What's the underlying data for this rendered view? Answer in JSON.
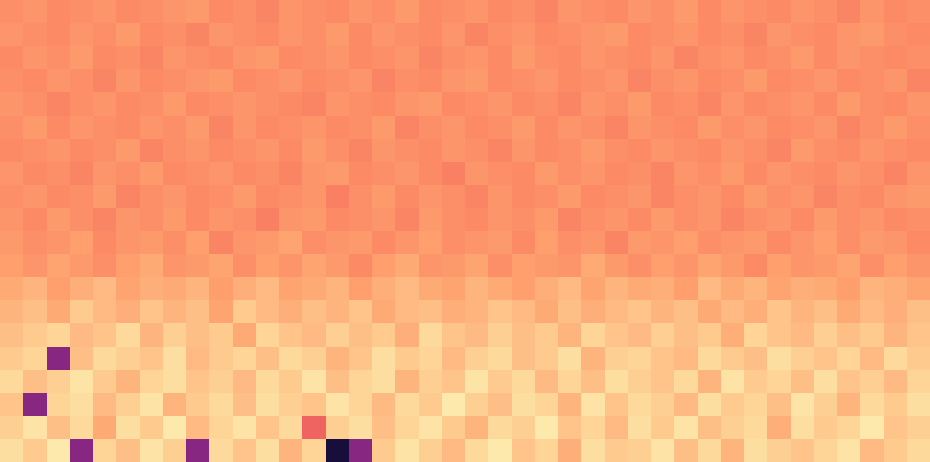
{
  "chart_data": {
    "type": "heatmap",
    "tick_labels": false,
    "zlim": [
      -90,
      0
    ],
    "z": [
      [
        -6,
        -10,
        -4,
        -55,
        -8,
        -12,
        -5,
        -9,
        -55,
        -7,
        -11,
        -6,
        -14,
        -8,
        -80,
        -55,
        -10,
        -5,
        -9,
        -13,
        -7,
        -4,
        -11,
        -8,
        -15,
        -6,
        -10,
        -9,
        -5,
        -12,
        -7,
        -14,
        -6,
        -9,
        -11,
        -8,
        -5,
        -13,
        -10,
        -7
      ],
      [
        -9,
        -5,
        -12,
        -7,
        -16,
        -6,
        -10,
        -4,
        -13,
        -8,
        -5,
        -11,
        -7,
        -30,
        -9,
        -6,
        -12,
        -8,
        -5,
        -10,
        -14,
        -7,
        -9,
        -4,
        -11,
        -8,
        -13,
        -6,
        -10,
        -5,
        -12,
        -9,
        -7,
        -15,
        -6,
        -10,
        -8,
        -4,
        -11,
        -9
      ],
      [
        -11,
        -55,
        -8,
        -6,
        -13,
        -9,
        -5,
        -14,
        -10,
        -7,
        -12,
        -6,
        -9,
        -11,
        -5,
        -8,
        -13,
        -7,
        -10,
        -4,
        -9,
        -12,
        -6,
        -8,
        -14,
        -5,
        -11,
        -7,
        -9,
        -13,
        -6,
        -10,
        -8,
        -12,
        -5,
        -9,
        -14,
        -7,
        -10,
        -6
      ],
      [
        -7,
        -12,
        -9,
        -5,
        -10,
        -14,
        -8,
        -6,
        -11,
        -9,
        -13,
        -7,
        -10,
        -5,
        -12,
        -8,
        -6,
        -14,
        -9,
        -11,
        -5,
        -10,
        -7,
        -13,
        -8,
        -12,
        -6,
        -9,
        -11,
        -7,
        -14,
        -5,
        -10,
        -8,
        -12,
        -6,
        -11,
        -9,
        -13,
        -8
      ],
      [
        -10,
        -8,
        -55,
        -12,
        -7,
        -9,
        -11,
        -6,
        -13,
        -10,
        -8,
        -12,
        -7,
        -9,
        -14,
        -11,
        -6,
        -10,
        -8,
        -13,
        -9,
        -7,
        -12,
        -10,
        -6,
        -14,
        -9,
        -8,
        -11,
        -13,
        -7,
        -10,
        -12,
        -6,
        -9,
        -11,
        -8,
        -13,
        -7,
        -10
      ],
      [
        -12,
        -10,
        -8,
        -13,
        -11,
        -7,
        -14,
        -9,
        -12,
        -10,
        -16,
        -8,
        -11,
        -13,
        -9,
        -12,
        -10,
        -15,
        -7,
        -11,
        -13,
        -9,
        -12,
        -10,
        -14,
        -8,
        -11,
        -13,
        -9,
        -12,
        -10,
        -15,
        -8,
        -11,
        -13,
        -9,
        -12,
        -10,
        -14,
        -11
      ],
      [
        -14,
        -12,
        -16,
        -10,
        -13,
        -15,
        -11,
        -14,
        -12,
        -17,
        -10,
        -13,
        -15,
        -12,
        -14,
        -11,
        -16,
        -13,
        -12,
        -15,
        -14,
        -11,
        -13,
        -16,
        -12,
        -15,
        -13,
        -11,
        -14,
        -12,
        -16,
        -13,
        -15,
        -11,
        -14,
        -12,
        -16,
        -13,
        -15,
        -12
      ],
      [
        -16,
        -14,
        -18,
        -15,
        -13,
        -17,
        -15,
        -16,
        -14,
        -18,
        -15,
        -13,
        -17,
        -16,
        -14,
        -18,
        -15,
        -13,
        -16,
        -17,
        -14,
        -16,
        -18,
        -15,
        -13,
        -17,
        -14,
        -16,
        -15,
        -18,
        -13,
        -16,
        -14,
        -17,
        -15,
        -16,
        -18,
        -14,
        -15,
        -17
      ],
      [
        -18,
        -20,
        -17,
        -19,
        -21,
        -18,
        -16,
        -20,
        -19,
        -17,
        -21,
        -18,
        -20,
        -17,
        -19,
        -22,
        -18,
        -16,
        -20,
        -19,
        -17,
        -21,
        -18,
        -19,
        -20,
        -16,
        -19,
        -21,
        -18,
        -20,
        -17,
        -19,
        -22,
        -18,
        -20,
        -19,
        -17,
        -21,
        -18,
        -20
      ],
      [
        -19,
        -21,
        -20,
        -18,
        -22,
        -20,
        -19,
        -21,
        -18,
        -23,
        -20,
        -19,
        -17,
        -21,
        -20,
        -19,
        -22,
        -20,
        -18,
        -21,
        -20,
        -19,
        -22,
        -18,
        -21,
        -20,
        -23,
        -19,
        -20,
        -18,
        -21,
        -20,
        -19,
        -22,
        -20,
        -18,
        -21,
        -19,
        -20,
        -22
      ],
      [
        -20,
        -22,
        -19,
        -21,
        -23,
        -20,
        -21,
        -19,
        -22,
        -20,
        -21,
        -24,
        -20,
        -19,
        -22,
        -21,
        -20,
        -23,
        -19,
        -21,
        -22,
        -20,
        -21,
        -19,
        -23,
        -21,
        -20,
        -22,
        -19,
        -21,
        -20,
        -23,
        -21,
        -20,
        -22,
        -19,
        -21,
        -20,
        -22,
        -21
      ],
      [
        -21,
        -20,
        -22,
        -21,
        -19,
        -23,
        -21,
        -20,
        -22,
        -21,
        -19,
        -22,
        -21,
        -20,
        -24,
        -21,
        -19,
        -22,
        -20,
        -21,
        -23,
        -20,
        -22,
        -21,
        -19,
        -22,
        -21,
        -20,
        -23,
        -21,
        -20,
        -22,
        -19,
        -21,
        -20,
        -23,
        -21,
        -22,
        -20,
        -19
      ],
      [
        -20,
        -22,
        -21,
        -23,
        -20,
        -21,
        -19,
        -22,
        -21,
        -20,
        -22,
        -21,
        -23,
        -20,
        -19,
        -22,
        -21,
        -20,
        -22,
        -24,
        -20,
        -21,
        -22,
        -19,
        -21,
        -20,
        -22,
        -21,
        -23,
        -20,
        -21,
        -19,
        -22,
        -20,
        -21,
        -22,
        -20,
        -21,
        -23,
        -20
      ],
      [
        -22,
        -21,
        -20,
        -22,
        -21,
        -19,
        -23,
        -21,
        -20,
        -22,
        -21,
        -20,
        -22,
        -19,
        -21,
        -23,
        -20,
        -21,
        -22,
        -20,
        -21,
        -23,
        -20,
        -22,
        -21,
        -19,
        -21,
        -22,
        -20,
        -21,
        -22,
        -20,
        -21,
        -23,
        -19,
        -21,
        -22,
        -20,
        -21,
        -22
      ],
      [
        -21,
        -19,
        -22,
        -20,
        -21,
        -22,
        -20,
        -21,
        -19,
        -23,
        -20,
        -22,
        -21,
        -20,
        -22,
        -21,
        -19,
        -23,
        -21,
        -20,
        -22,
        -21,
        -19,
        -22,
        -20,
        -21,
        -23,
        -20,
        -21,
        -22,
        -19,
        -21,
        -20,
        -22,
        -21,
        -20,
        -23,
        -21,
        -19,
        -21
      ],
      [
        -20,
        -21,
        -23,
        -21,
        -20,
        -22,
        -21,
        -19,
        -22,
        -21,
        -20,
        -21,
        -22,
        -23,
        -20,
        -21,
        -22,
        -20,
        -19,
        -22,
        -21,
        -20,
        -22,
        -21,
        -23,
        -20,
        -21,
        -19,
        -22,
        -21,
        -23,
        -20,
        -22,
        -21,
        -20,
        -22,
        -19,
        -21,
        -22,
        -20
      ],
      [
        -21,
        -22,
        -20,
        -21,
        -23,
        -20,
        -22,
        -21,
        -20,
        -19,
        -22,
        -21,
        -20,
        -22,
        -21,
        -20,
        -23,
        -21,
        -22,
        -20,
        -19,
        -22,
        -21,
        -20,
        -22,
        -21,
        -20,
        -23,
        -21,
        -20,
        -22,
        -21,
        -19,
        -22,
        -21,
        -20,
        -22,
        -21,
        -20,
        -23
      ],
      [
        -22,
        -20,
        -21,
        -19,
        -22,
        -21,
        -23,
        -20,
        -21,
        -22,
        -20,
        -19,
        -22,
        -21,
        -20,
        -22,
        -21,
        -20,
        -23,
        -21,
        -20,
        -22,
        -19,
        -21,
        -22,
        -20,
        -21,
        -22,
        -20,
        -23,
        -21,
        -20,
        -22,
        -21,
        -19,
        -22,
        -20,
        -21,
        -22,
        -21
      ],
      [
        -20,
        -21,
        -22,
        -20,
        -21,
        -19,
        -22,
        -21,
        -23,
        -20,
        -21,
        -22,
        -20,
        -21,
        -19,
        -22,
        -20,
        -21,
        -22,
        -20,
        -23,
        -21,
        -20,
        -22,
        -21,
        -20,
        -19,
        -22,
        -21,
        -20,
        -22,
        -21,
        -23,
        -20,
        -21,
        -22,
        -20,
        -19,
        -21,
        -22
      ],
      [
        -21,
        -20,
        -22,
        -21,
        -20,
        -22,
        -21,
        -20,
        -19,
        -22,
        -21,
        -23,
        -20,
        -21,
        -22,
        -20,
        -21,
        -19,
        -22,
        -21,
        -20,
        -22,
        -21,
        -23,
        -20,
        -21,
        -22,
        -20,
        -21,
        -19,
        -22,
        -20,
        -21,
        -22,
        -20,
        -21,
        -23,
        -20,
        -22,
        -21
      ]
    ]
  }
}
